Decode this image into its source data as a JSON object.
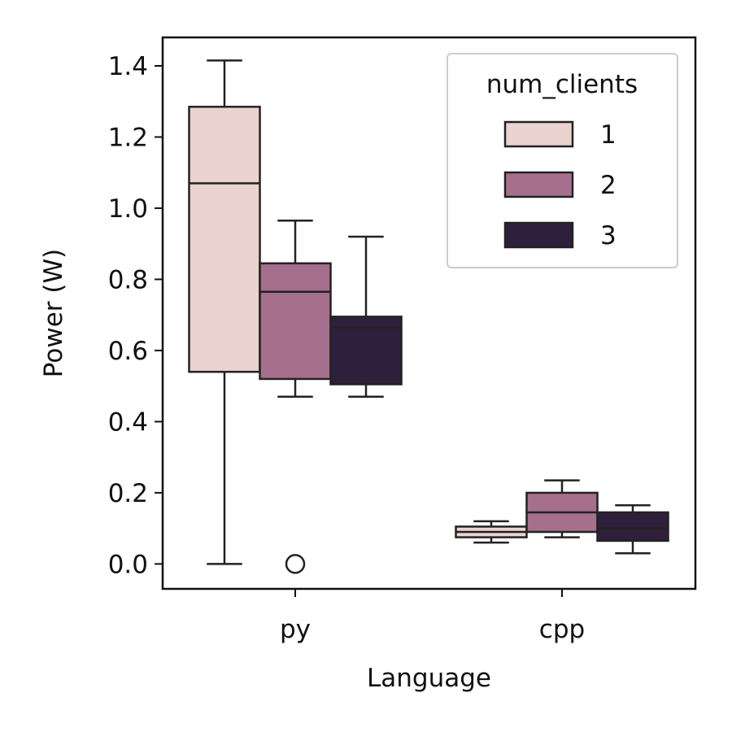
{
  "chart_data": {
    "type": "box",
    "xlabel": "Language",
    "ylabel": "Power (W)",
    "categories": [
      "py",
      "cpp"
    ],
    "ylim": [
      -0.07,
      1.48
    ],
    "yticks": [
      0.0,
      0.2,
      0.4,
      0.6,
      0.8,
      1.0,
      1.2,
      1.4
    ],
    "ytick_labels": [
      "0.0",
      "0.2",
      "0.4",
      "0.6",
      "0.8",
      "1.0",
      "1.2",
      "1.4"
    ],
    "grid": false,
    "legend": {
      "title": "num_clients",
      "placement": "top-right",
      "entries": [
        "1",
        "2",
        "3"
      ]
    },
    "series": [
      {
        "name": "1",
        "color": "#ebd3cf",
        "boxes": [
          {
            "category": "py",
            "whisker_low": 0.0,
            "q1": 0.54,
            "median": 1.07,
            "q3": 1.285,
            "whisker_high": 1.415,
            "outliers": []
          },
          {
            "category": "cpp",
            "whisker_low": 0.06,
            "q1": 0.075,
            "median": 0.09,
            "q3": 0.105,
            "whisker_high": 0.12,
            "outliers": []
          }
        ]
      },
      {
        "name": "2",
        "color": "#a56f8d",
        "boxes": [
          {
            "category": "py",
            "whisker_low": 0.47,
            "q1": 0.52,
            "median": 0.765,
            "q3": 0.845,
            "whisker_high": 0.965,
            "outliers": [
              0.0
            ]
          },
          {
            "category": "cpp",
            "whisker_low": 0.075,
            "q1": 0.09,
            "median": 0.145,
            "q3": 0.2,
            "whisker_high": 0.235,
            "outliers": []
          }
        ]
      },
      {
        "name": "3",
        "color": "#2e1f3c",
        "boxes": [
          {
            "category": "py",
            "whisker_low": 0.47,
            "q1": 0.505,
            "median": 0.665,
            "q3": 0.695,
            "whisker_high": 0.92,
            "outliers": []
          },
          {
            "category": "cpp",
            "whisker_low": 0.03,
            "q1": 0.065,
            "median": 0.1,
            "q3": 0.145,
            "whisker_high": 0.165,
            "outliers": []
          }
        ]
      }
    ]
  }
}
